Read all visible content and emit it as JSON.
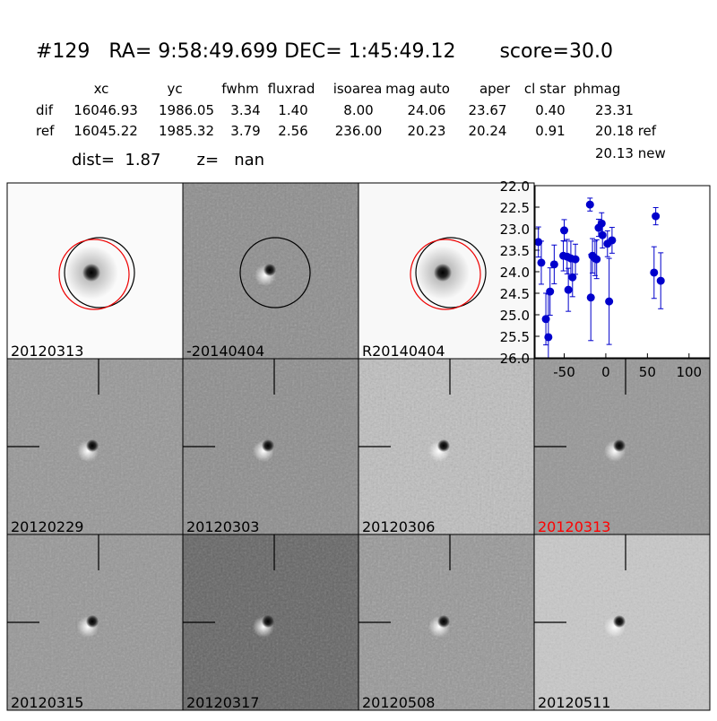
{
  "header": {
    "title": "#129   RA= 9:58:49.699 DEC= 1:45:49.12       score=30.0",
    "distance": "dist=  1.87       z=   nan"
  },
  "table": {
    "columns": [
      "xc",
      "yc",
      "fwhm",
      "fluxrad",
      "isoarea",
      "mag auto",
      "aper",
      "cl star",
      "phmag"
    ],
    "rows": [
      [
        "dif",
        "16046.93",
        "1986.05",
        "3.34",
        "1.40",
        "8.00",
        "24.06",
        "23.67",
        "0.40",
        "23.31"
      ],
      [
        "ref",
        "16045.22",
        "1985.32",
        "3.79",
        "2.56",
        "236.00",
        "20.23",
        "20.24",
        "0.91",
        "20.18 ref"
      ]
    ],
    "extra": "20.13 new"
  },
  "stamps": [
    {
      "label": "20120313",
      "label_color": "#000000"
    },
    {
      "label": "-20140404",
      "label_color": "#000000"
    },
    {
      "label": "R20140404",
      "label_color": "#000000"
    },
    {
      "label": "20120229",
      "label_color": "#000000"
    },
    {
      "label": "20120303",
      "label_color": "#000000"
    },
    {
      "label": "20120306",
      "label_color": "#000000"
    },
    {
      "label": "20120313",
      "label_color": "#ff0000"
    },
    {
      "label": "20120315",
      "label_color": "#000000"
    },
    {
      "label": "20120317",
      "label_color": "#000000"
    },
    {
      "label": "20120508",
      "label_color": "#000000"
    },
    {
      "label": "20120511",
      "label_color": "#000000"
    }
  ],
  "plot": {
    "type": "scatter",
    "color": "#0000cc",
    "x": [
      -81,
      -77.5,
      -72,
      -69,
      -67,
      -62,
      -51,
      -50,
      -46.5,
      -45,
      -42,
      -40,
      -36.5,
      -19,
      -18,
      -16,
      -13,
      -11,
      -8.6,
      -5,
      -4,
      2,
      4,
      7.5,
      60,
      58,
      66
    ],
    "values": [
      23.31,
      23.79,
      25.1,
      25.52,
      24.46,
      23.83,
      23.63,
      23.04,
      23.65,
      24.42,
      23.69,
      24.13,
      23.71,
      22.44,
      24.6,
      23.63,
      23.69,
      23.71,
      22.98,
      22.88,
      23.15,
      23.35,
      24.69,
      23.27,
      22.71,
      24.02,
      24.21
    ],
    "errors": [
      0.35,
      0.5,
      0.6,
      1.0,
      0.55,
      0.45,
      0.35,
      0.25,
      0.4,
      0.5,
      0.4,
      0.45,
      0.35,
      0.15,
      1.0,
      0.4,
      0.4,
      0.45,
      0.2,
      0.25,
      0.3,
      0.3,
      1.0,
      0.3,
      0.2,
      0.6,
      0.65
    ],
    "xlim": [
      -85,
      125
    ],
    "xticks": [
      -50,
      0,
      50,
      100
    ],
    "ylim": [
      26,
      22
    ],
    "yticks": [
      {
        "value": 22,
        "label": "22.0"
      },
      {
        "value": 22.5,
        "label": "22.5"
      },
      {
        "value": 23,
        "label": "23.0"
      },
      {
        "value": 23.5,
        "label": "23.5"
      },
      {
        "value": 24,
        "label": "24.0"
      },
      {
        "value": 24.5,
        "label": "24.5"
      },
      {
        "value": 25,
        "label": "25.0"
      },
      {
        "value": 25.5,
        "label": "25.5"
      },
      {
        "value": 26,
        "label": "26.0"
      }
    ]
  }
}
